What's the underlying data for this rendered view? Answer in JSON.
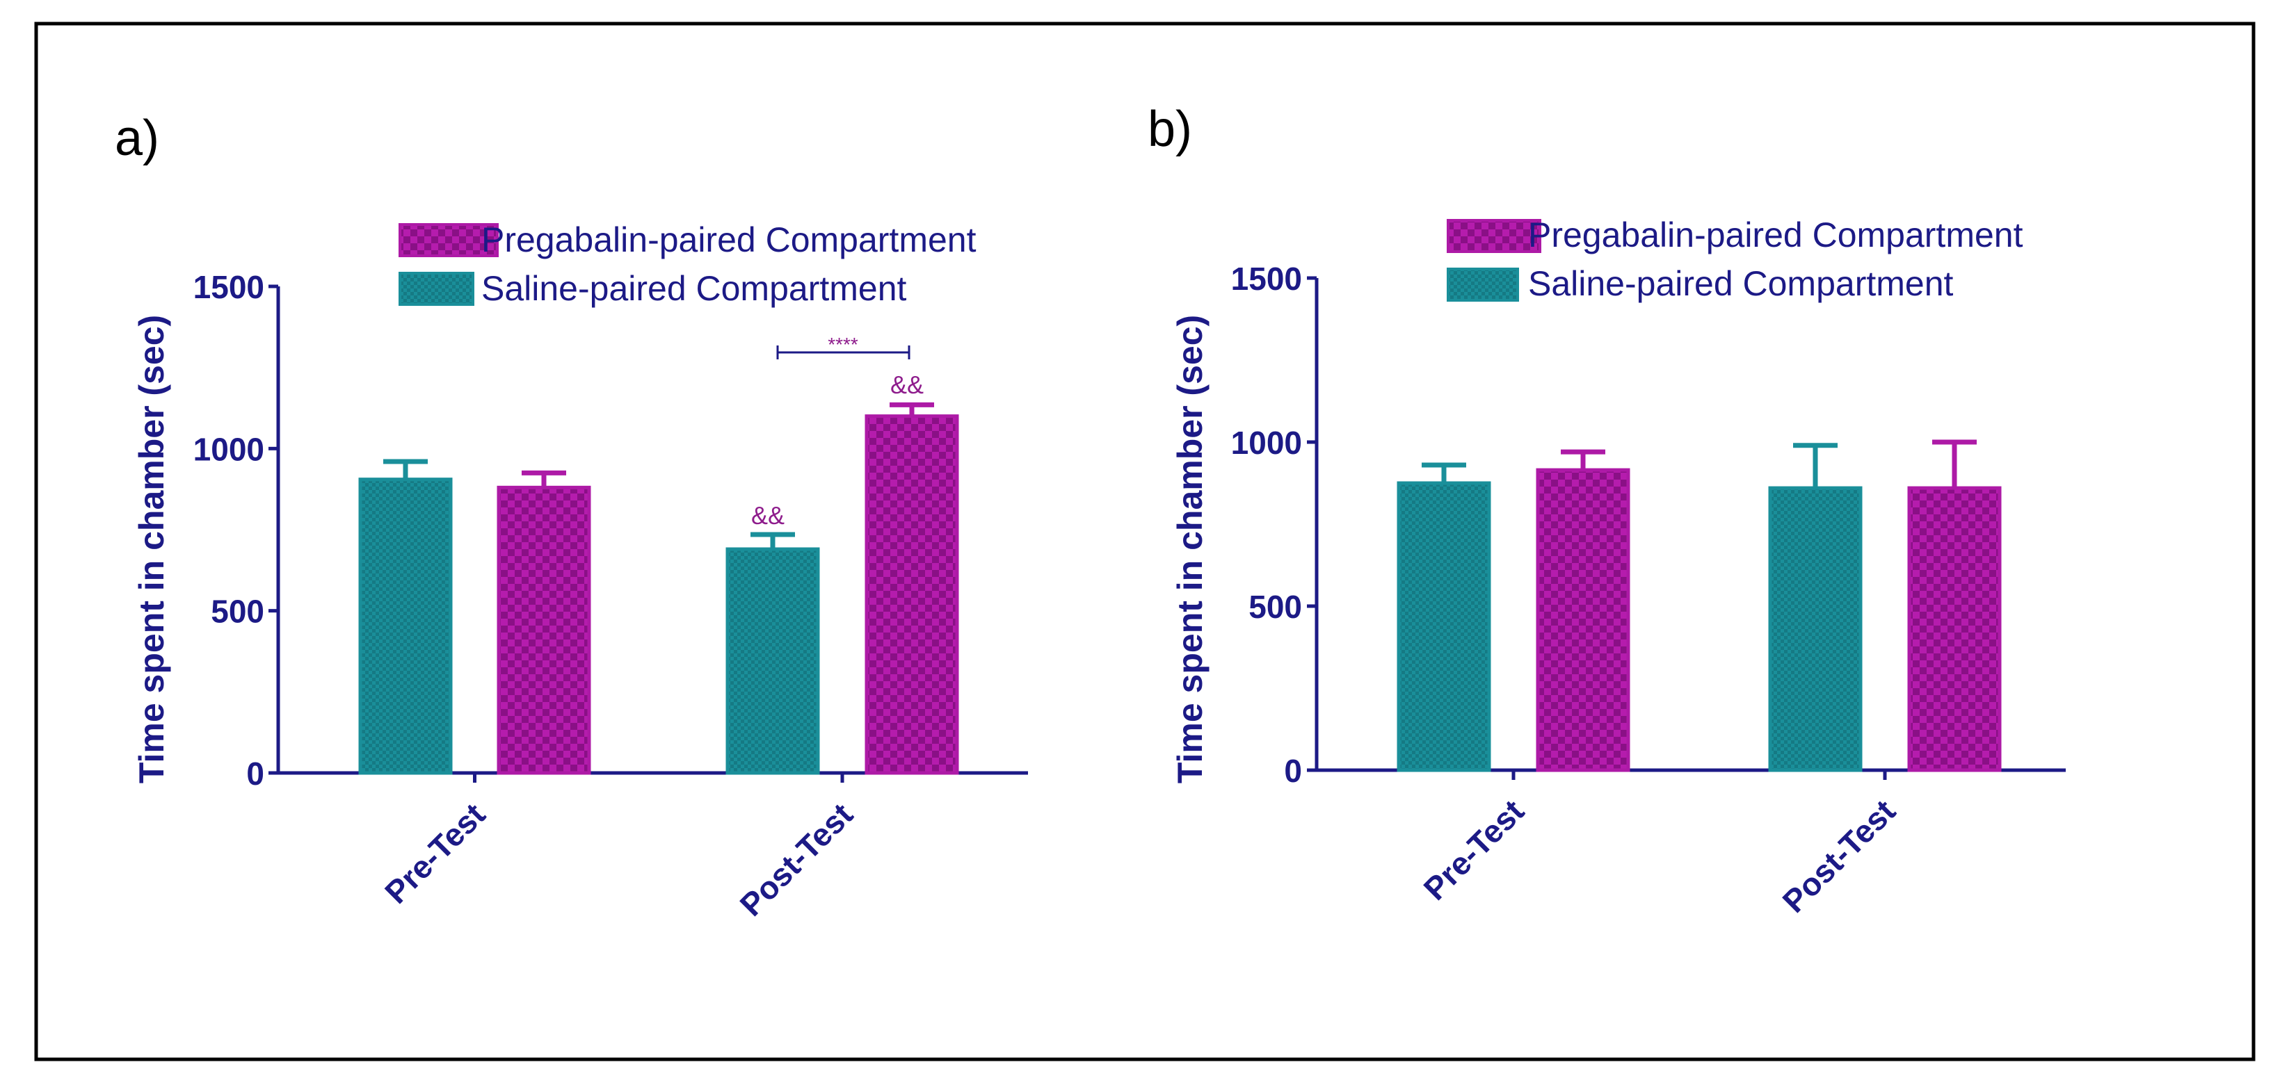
{
  "colors": {
    "axis": "#1c1a86",
    "saline": "#1a8f9a",
    "saline_dark": "#167f89",
    "pregabalin": "#ad1aa6",
    "pregabalin_dark": "#8c1388",
    "annotation": "#8e1c8c",
    "legend_text": "#1c1a86",
    "border": "#000000"
  },
  "chart_data": [
    {
      "type": "bar",
      "panel_label": "a)",
      "ylabel": "Time spent in chamber (sec)",
      "ylim": [
        0,
        1500
      ],
      "yticks": [
        "0",
        "500",
        "1000",
        "1500"
      ],
      "categories": [
        "Pre-Test",
        "Post-Test"
      ],
      "legend": [
        "Pregabalin-paired Compartment",
        "Saline-paired Compartment"
      ],
      "series": [
        {
          "name": "Saline-paired Compartment",
          "values": [
            905,
            690
          ],
          "errors": [
            55,
            45
          ]
        },
        {
          "name": "Pregabalin-paired Compartment",
          "values": [
            880,
            1100
          ],
          "errors": [
            45,
            35
          ]
        }
      ],
      "annotations": {
        "saline_post": "&&",
        "pregabalin_post": "&&",
        "significance": "****"
      }
    },
    {
      "type": "bar",
      "panel_label": "b)",
      "ylabel": "Time spent in chamber (sec)",
      "ylim": [
        0,
        1500
      ],
      "yticks": [
        "0",
        "500",
        "1000",
        "1500"
      ],
      "categories": [
        "Pre-Test",
        "Post-Test"
      ],
      "legend": [
        "Pregabalin-paired Compartment",
        "Saline-paired Compartment"
      ],
      "series": [
        {
          "name": "Saline-paired Compartment",
          "values": [
            875,
            860
          ],
          "errors": [
            55,
            130
          ]
        },
        {
          "name": "Pregabalin-paired Compartment",
          "values": [
            915,
            860
          ],
          "errors": [
            55,
            140
          ]
        }
      ]
    }
  ]
}
